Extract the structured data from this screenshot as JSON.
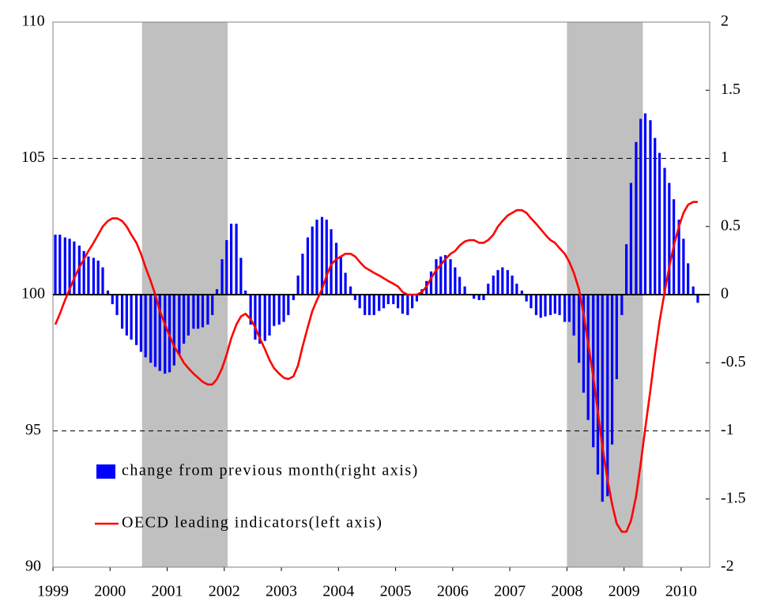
{
  "chart_data": {
    "type": "bar-line",
    "x": [
      1999,
      1999.08,
      1999.17,
      1999.25,
      1999.33,
      1999.42,
      1999.5,
      1999.58,
      1999.67,
      1999.75,
      1999.83,
      1999.92,
      2000,
      2000.08,
      2000.17,
      2000.25,
      2000.33,
      2000.42,
      2000.5,
      2000.58,
      2000.67,
      2000.75,
      2000.83,
      2000.92,
      2001,
      2001.08,
      2001.17,
      2001.25,
      2001.33,
      2001.42,
      2001.5,
      2001.58,
      2001.67,
      2001.75,
      2001.83,
      2001.92,
      2002,
      2002.08,
      2002.17,
      2002.25,
      2002.33,
      2002.42,
      2002.5,
      2002.58,
      2002.67,
      2002.75,
      2002.83,
      2002.92,
      2003,
      2003.08,
      2003.17,
      2003.25,
      2003.33,
      2003.42,
      2003.5,
      2003.58,
      2003.67,
      2003.75,
      2003.83,
      2003.92,
      2004,
      2004.08,
      2004.17,
      2004.25,
      2004.33,
      2004.42,
      2004.5,
      2004.58,
      2004.67,
      2004.75,
      2004.83,
      2004.92,
      2005,
      2005.08,
      2005.17,
      2005.25,
      2005.33,
      2005.42,
      2005.5,
      2005.58,
      2005.67,
      2005.75,
      2005.83,
      2005.92,
      2006,
      2006.08,
      2006.17,
      2006.25,
      2006.33,
      2006.42,
      2006.5,
      2006.58,
      2006.67,
      2006.75,
      2006.83,
      2006.92,
      2007,
      2007.08,
      2007.17,
      2007.25,
      2007.33,
      2007.42,
      2007.5,
      2007.58,
      2007.67,
      2007.75,
      2007.83,
      2007.92,
      2008,
      2008.08,
      2008.17,
      2008.25,
      2008.33,
      2008.42,
      2008.5,
      2008.58,
      2008.67,
      2008.75,
      2008.83,
      2008.92,
      2009,
      2009.08,
      2009.17,
      2009.25,
      2009.33,
      2009.42,
      2009.5,
      2009.58,
      2009.67,
      2009.75,
      2009.83,
      2009.92,
      2010,
      2010.08,
      2010.17,
      2010.25
    ],
    "series": [
      {
        "name": "change from previous month(right axis)",
        "color": "#0000ff",
        "axis": "y2",
        "kind": "bar",
        "values": [
          0.44,
          0.44,
          0.42,
          0.41,
          0.39,
          0.36,
          0.32,
          0.28,
          0.27,
          0.25,
          0.2,
          0.03,
          -0.07,
          -0.15,
          -0.25,
          -0.3,
          -0.33,
          -0.37,
          -0.42,
          -0.46,
          -0.5,
          -0.53,
          -0.56,
          -0.58,
          -0.57,
          -0.52,
          -0.44,
          -0.36,
          -0.3,
          -0.25,
          -0.25,
          -0.24,
          -0.22,
          -0.15,
          0.04,
          0.26,
          0.4,
          0.52,
          0.52,
          0.27,
          0.03,
          -0.22,
          -0.33,
          -0.36,
          -0.34,
          -0.3,
          -0.23,
          -0.22,
          -0.2,
          -0.15,
          -0.04,
          0.14,
          0.3,
          0.42,
          0.5,
          0.55,
          0.57,
          0.55,
          0.48,
          0.38,
          0.28,
          0.16,
          0.06,
          -0.04,
          -0.1,
          -0.15,
          -0.15,
          -0.15,
          -0.12,
          -0.1,
          -0.07,
          -0.07,
          -0.1,
          -0.14,
          -0.15,
          -0.1,
          -0.05,
          0.04,
          0.1,
          0.17,
          0.26,
          0.28,
          0.29,
          0.26,
          0.2,
          0.13,
          0.06,
          0.0,
          -0.03,
          -0.04,
          -0.04,
          0.08,
          0.14,
          0.18,
          0.2,
          0.18,
          0.14,
          0.08,
          0.03,
          -0.05,
          -0.1,
          -0.15,
          -0.17,
          -0.16,
          -0.15,
          -0.14,
          -0.15,
          -0.2,
          -0.2,
          -0.3,
          -0.5,
          -0.72,
          -0.92,
          -1.12,
          -1.32,
          -1.52,
          -1.48,
          -1.1,
          -0.62,
          -0.15,
          0.37,
          0.82,
          1.12,
          1.29,
          1.33,
          1.28,
          1.15,
          1.04,
          0.93,
          0.82,
          0.7,
          0.55,
          0.41,
          0.23,
          0.06,
          -0.06
        ]
      },
      {
        "name": "OECD leading indicators(left axis)",
        "color": "#ff0000",
        "axis": "y",
        "kind": "line",
        "values": [
          98.9,
          99.3,
          99.8,
          100.2,
          100.6,
          101.0,
          101.3,
          101.6,
          101.9,
          102.2,
          102.5,
          102.7,
          102.8,
          102.8,
          102.7,
          102.5,
          102.2,
          101.9,
          101.5,
          101.0,
          100.5,
          100.0,
          99.4,
          98.9,
          98.5,
          98.1,
          97.8,
          97.5,
          97.3,
          97.1,
          96.95,
          96.8,
          96.7,
          96.7,
          96.9,
          97.3,
          97.8,
          98.4,
          98.9,
          99.2,
          99.3,
          99.1,
          98.8,
          98.4,
          98.0,
          97.6,
          97.3,
          97.1,
          96.95,
          96.9,
          97.0,
          97.4,
          98.1,
          98.8,
          99.4,
          99.8,
          100.2,
          100.7,
          101.1,
          101.3,
          101.4,
          101.5,
          101.5,
          101.4,
          101.2,
          101.0,
          100.9,
          100.8,
          100.7,
          100.6,
          100.5,
          100.4,
          100.3,
          100.1,
          100.0,
          100.0,
          100.0,
          100.1,
          100.3,
          100.6,
          100.9,
          101.1,
          101.3,
          101.5,
          101.6,
          101.8,
          101.95,
          102.0,
          102.0,
          101.9,
          101.9,
          102.0,
          102.2,
          102.5,
          102.7,
          102.9,
          103.0,
          103.1,
          103.1,
          103.0,
          102.8,
          102.6,
          102.4,
          102.2,
          102.0,
          101.9,
          101.7,
          101.5,
          101.2,
          100.8,
          100.2,
          99.3,
          98.2,
          97.0,
          95.7,
          94.4,
          93.2,
          92.3,
          91.6,
          91.3,
          91.3,
          91.7,
          92.6,
          93.8,
          95.1,
          96.5,
          97.8,
          99.0,
          100.1,
          101.0,
          101.8,
          102.5,
          103.0,
          103.3,
          103.4,
          103.4
        ]
      }
    ],
    "shaded_periods": [
      [
        2000.56,
        2002.06
      ],
      [
        2008.0,
        2009.33
      ]
    ],
    "xlim": [
      1999,
      2010.5
    ],
    "xticks": [
      1999,
      2000,
      2001,
      2002,
      2003,
      2004,
      2005,
      2006,
      2007,
      2008,
      2009,
      2010
    ],
    "ylim": [
      90,
      110
    ],
    "yticks": [
      90,
      95,
      100,
      105,
      110
    ],
    "y2lim": [
      -2,
      2
    ],
    "y2ticks": [
      -2,
      -1.5,
      -1,
      -0.5,
      0,
      0.5,
      1,
      1.5,
      2
    ],
    "grid": "dashed",
    "legend": "lower left"
  }
}
